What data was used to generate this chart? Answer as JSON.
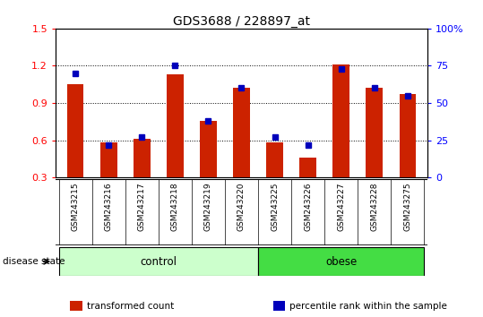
{
  "title": "GDS3688 / 228897_at",
  "samples": [
    "GSM243215",
    "GSM243216",
    "GSM243217",
    "GSM243218",
    "GSM243219",
    "GSM243220",
    "GSM243225",
    "GSM243226",
    "GSM243227",
    "GSM243228",
    "GSM243275"
  ],
  "transformed_count": [
    1.05,
    0.585,
    0.61,
    1.13,
    0.755,
    1.02,
    0.585,
    0.46,
    1.21,
    1.02,
    0.975
  ],
  "percentile_rank": [
    70,
    22,
    27,
    75,
    38,
    60,
    27,
    22,
    73,
    60,
    55
  ],
  "control_count": 6,
  "disease_state_label": "disease state",
  "ylim_left": [
    0.3,
    1.5
  ],
  "ylim_right": [
    0,
    100
  ],
  "yticks_left": [
    0.3,
    0.6,
    0.9,
    1.2,
    1.5
  ],
  "yticks_right": [
    0,
    25,
    50,
    75,
    100
  ],
  "ytick_labels_right": [
    "0",
    "25",
    "50",
    "75",
    "100%"
  ],
  "bar_color": "#CC2200",
  "percentile_color": "#0000BB",
  "bar_width": 0.5,
  "percentile_marker_size": 5,
  "control_color": "#CCFFCC",
  "obese_color": "#44DD44",
  "label_bg_color": "#CCCCCC",
  "legend_items": [
    {
      "label": "transformed count",
      "color": "#CC2200"
    },
    {
      "label": "percentile rank within the sample",
      "color": "#0000BB"
    }
  ]
}
